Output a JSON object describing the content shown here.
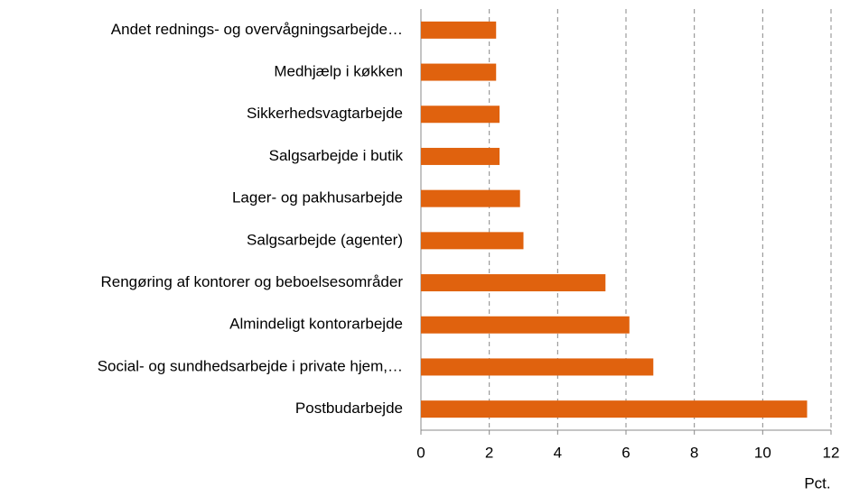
{
  "chart_data": {
    "type": "hbar",
    "categories": [
      "Andet rednings- og overvågningsarbejde…",
      "Medhjælp i køkken",
      "Sikkerhedsvagtarbejde",
      "Salgsarbejde i butik",
      "Lager- og pakhusarbejde",
      "Salgsarbejde (agenter)",
      "Rengøring af kontorer og beboelsesområder",
      "Almindeligt kontorarbejde",
      "Social- og sundhedsarbejde i private hjem,…",
      "Postbudarbejde"
    ],
    "values": [
      2.2,
      2.2,
      2.3,
      2.3,
      2.9,
      3.0,
      5.4,
      6.1,
      6.8,
      11.3
    ],
    "color": "#e0620e",
    "xlabel": "Pct.",
    "xlim": [
      0,
      12
    ],
    "xticks": [
      0,
      2,
      4,
      6,
      8,
      10,
      12
    ],
    "grid": true
  }
}
